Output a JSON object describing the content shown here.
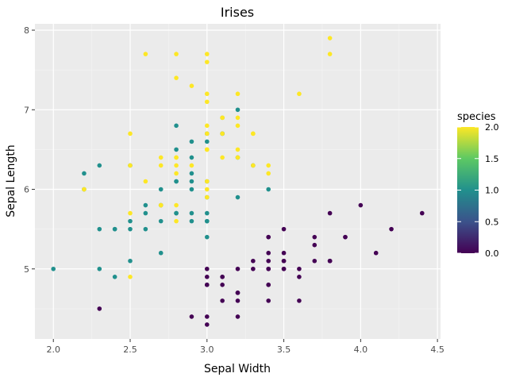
{
  "chart_data": {
    "type": "scatter",
    "title": "Irises",
    "xlabel": "Sepal Width",
    "ylabel": "Sepal Length",
    "xlim": [
      1.88,
      4.52
    ],
    "ylim": [
      4.12,
      8.08
    ],
    "x_ticks": [
      2.0,
      2.5,
      3.0,
      3.5,
      4.0,
      4.5
    ],
    "x_tick_labels": [
      "2.0",
      "2.5",
      "3.0",
      "3.5",
      "4.0",
      "4.5"
    ],
    "y_ticks": [
      5,
      6,
      7,
      8
    ],
    "y_tick_labels": [
      "5",
      "6",
      "7",
      "8"
    ],
    "grid": true,
    "background": "#ebebeb",
    "legend": {
      "title": "species",
      "type": "colorbar",
      "placement": "right",
      "min": 0,
      "max": 2,
      "ticks": [
        0.0,
        0.5,
        1.0,
        1.5,
        2.0
      ],
      "tick_labels": [
        "0.0",
        "0.5",
        "1.0",
        "1.5",
        "2.0"
      ],
      "colors": [
        "#440154",
        "#3b528b",
        "#21908d",
        "#5dc963",
        "#fde725"
      ]
    },
    "series": [
      {
        "species": 0,
        "color": "#440154",
        "points": [
          [
            3.5,
            5.1
          ],
          [
            3.0,
            4.9
          ],
          [
            3.2,
            4.7
          ],
          [
            3.1,
            4.6
          ],
          [
            3.6,
            5.0
          ],
          [
            3.9,
            5.4
          ],
          [
            3.4,
            4.6
          ],
          [
            3.4,
            5.0
          ],
          [
            2.9,
            4.4
          ],
          [
            3.1,
            4.9
          ],
          [
            3.7,
            5.4
          ],
          [
            3.4,
            4.8
          ],
          [
            3.0,
            4.8
          ],
          [
            3.0,
            4.3
          ],
          [
            4.0,
            5.8
          ],
          [
            4.4,
            5.7
          ],
          [
            3.9,
            5.4
          ],
          [
            3.5,
            5.1
          ],
          [
            3.8,
            5.7
          ],
          [
            3.8,
            5.1
          ],
          [
            3.4,
            5.4
          ],
          [
            3.7,
            5.1
          ],
          [
            3.6,
            4.6
          ],
          [
            3.3,
            5.1
          ],
          [
            3.4,
            4.8
          ],
          [
            3.0,
            5.0
          ],
          [
            3.4,
            5.0
          ],
          [
            3.5,
            5.2
          ],
          [
            3.4,
            5.2
          ],
          [
            3.2,
            4.7
          ],
          [
            3.1,
            4.8
          ],
          [
            3.4,
            5.4
          ],
          [
            4.1,
            5.2
          ],
          [
            4.2,
            5.5
          ],
          [
            3.1,
            4.9
          ],
          [
            3.2,
            5.0
          ],
          [
            3.5,
            5.5
          ],
          [
            3.6,
            4.9
          ],
          [
            3.0,
            4.4
          ],
          [
            3.4,
            5.1
          ],
          [
            3.5,
            5.0
          ],
          [
            2.3,
            4.5
          ],
          [
            3.2,
            4.4
          ],
          [
            3.5,
            5.0
          ],
          [
            3.8,
            5.1
          ],
          [
            3.0,
            4.8
          ],
          [
            3.8,
            5.1
          ],
          [
            3.2,
            4.6
          ],
          [
            3.7,
            5.3
          ],
          [
            3.3,
            5.0
          ]
        ]
      },
      {
        "species": 1,
        "color": "#21908d",
        "points": [
          [
            3.2,
            7.0
          ],
          [
            3.2,
            6.4
          ],
          [
            3.1,
            6.9
          ],
          [
            2.3,
            5.5
          ],
          [
            2.8,
            6.5
          ],
          [
            2.8,
            5.7
          ],
          [
            3.3,
            6.3
          ],
          [
            2.4,
            4.9
          ],
          [
            2.9,
            6.6
          ],
          [
            2.7,
            5.2
          ],
          [
            2.0,
            5.0
          ],
          [
            3.0,
            5.9
          ],
          [
            2.2,
            6.0
          ],
          [
            2.9,
            6.1
          ],
          [
            2.9,
            5.6
          ],
          [
            3.1,
            6.7
          ],
          [
            3.0,
            5.6
          ],
          [
            2.7,
            5.8
          ],
          [
            2.2,
            6.2
          ],
          [
            2.5,
            5.6
          ],
          [
            3.2,
            5.9
          ],
          [
            2.8,
            6.1
          ],
          [
            2.5,
            6.3
          ],
          [
            2.8,
            6.1
          ],
          [
            2.9,
            6.4
          ],
          [
            3.0,
            6.6
          ],
          [
            2.8,
            6.8
          ],
          [
            3.0,
            6.7
          ],
          [
            2.9,
            6.0
          ],
          [
            2.6,
            5.7
          ],
          [
            2.4,
            5.5
          ],
          [
            2.4,
            5.5
          ],
          [
            2.7,
            5.8
          ],
          [
            2.7,
            6.0
          ],
          [
            3.0,
            5.4
          ],
          [
            3.4,
            6.0
          ],
          [
            3.1,
            6.7
          ],
          [
            2.3,
            6.3
          ],
          [
            3.0,
            5.6
          ],
          [
            2.5,
            5.5
          ],
          [
            2.6,
            5.5
          ],
          [
            3.0,
            6.1
          ],
          [
            2.6,
            5.8
          ],
          [
            2.3,
            5.0
          ],
          [
            2.7,
            5.6
          ],
          [
            3.0,
            5.7
          ],
          [
            2.9,
            5.7
          ],
          [
            2.9,
            6.2
          ],
          [
            2.5,
            5.1
          ],
          [
            2.8,
            5.7
          ]
        ]
      },
      {
        "species": 2,
        "color": "#fde725",
        "points": [
          [
            3.3,
            6.3
          ],
          [
            2.7,
            5.8
          ],
          [
            3.0,
            7.1
          ],
          [
            2.9,
            6.3
          ],
          [
            3.0,
            6.5
          ],
          [
            3.0,
            7.6
          ],
          [
            2.5,
            4.9
          ],
          [
            2.9,
            7.3
          ],
          [
            2.5,
            6.7
          ],
          [
            3.6,
            7.2
          ],
          [
            3.2,
            6.5
          ],
          [
            2.7,
            6.4
          ],
          [
            3.0,
            6.8
          ],
          [
            2.5,
            5.7
          ],
          [
            2.8,
            5.8
          ],
          [
            3.2,
            6.4
          ],
          [
            3.0,
            6.5
          ],
          [
            3.8,
            7.7
          ],
          [
            2.6,
            7.7
          ],
          [
            2.2,
            6.0
          ],
          [
            3.2,
            6.9
          ],
          [
            2.8,
            5.6
          ],
          [
            2.8,
            7.7
          ],
          [
            2.7,
            6.3
          ],
          [
            3.3,
            6.7
          ],
          [
            3.2,
            7.2
          ],
          [
            2.8,
            6.2
          ],
          [
            3.0,
            6.1
          ],
          [
            2.8,
            6.4
          ],
          [
            3.0,
            7.2
          ],
          [
            2.8,
            7.4
          ],
          [
            3.8,
            7.9
          ],
          [
            2.8,
            6.4
          ],
          [
            2.8,
            6.3
          ],
          [
            2.6,
            6.1
          ],
          [
            3.0,
            7.7
          ],
          [
            3.4,
            6.3
          ],
          [
            3.1,
            6.4
          ],
          [
            3.0,
            6.0
          ],
          [
            3.1,
            6.9
          ],
          [
            3.1,
            6.7
          ],
          [
            3.1,
            6.9
          ],
          [
            2.7,
            5.8
          ],
          [
            3.2,
            6.8
          ],
          [
            3.3,
            6.7
          ],
          [
            3.0,
            6.7
          ],
          [
            2.5,
            6.3
          ],
          [
            3.0,
            6.5
          ],
          [
            3.4,
            6.2
          ],
          [
            3.0,
            5.9
          ]
        ]
      }
    ]
  }
}
